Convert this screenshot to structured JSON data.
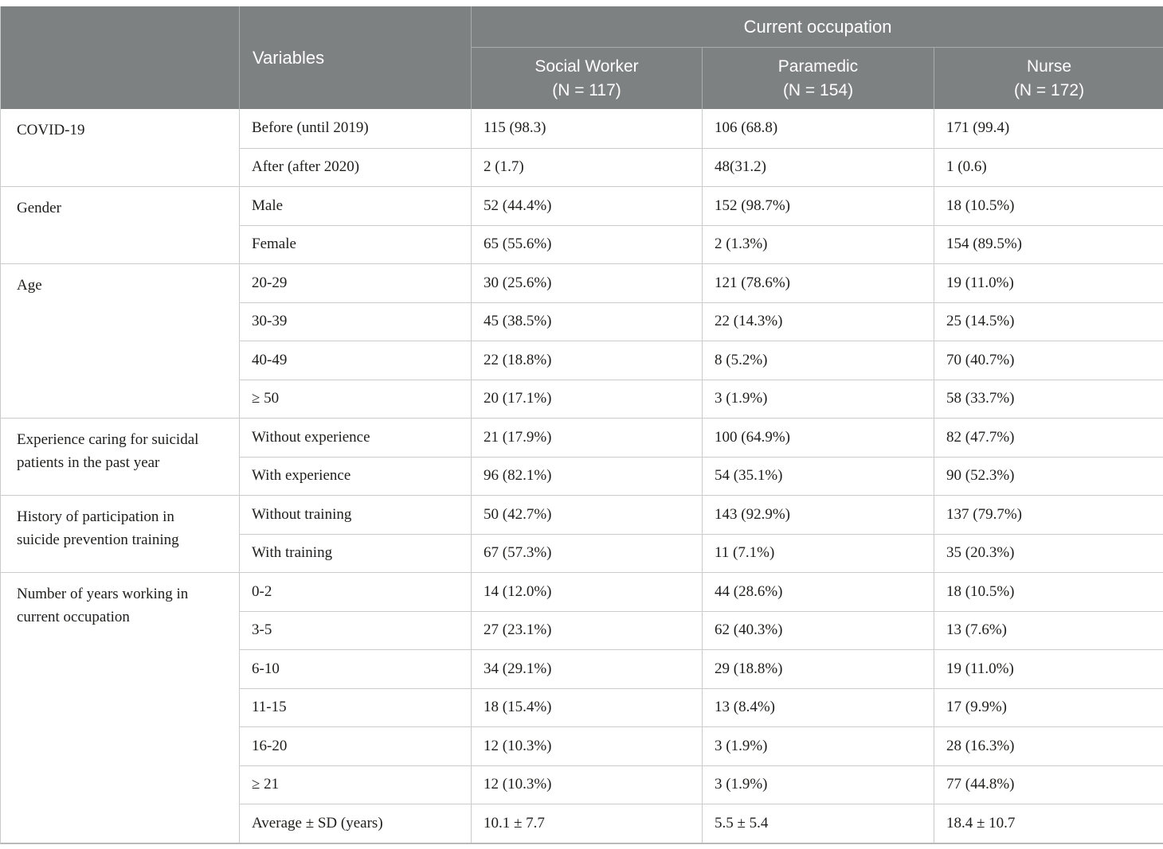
{
  "colors": {
    "header_bg": "#7e8181",
    "header_text": "#ffffff",
    "header_divider": "#a9abac",
    "row_border": "#c9cbcc",
    "table_edge": "#b7b9ba",
    "text": "#1e1e1c",
    "background": "#ffffff"
  },
  "table": {
    "variables_header": "Variables",
    "occupation_header": "Current occupation",
    "columns": [
      {
        "label": "Social Worker",
        "n_label": "(N = 117)"
      },
      {
        "label": "Paramedic",
        "n_label": "(N = 154)"
      },
      {
        "label": "Nurse",
        "n_label": "(N = 172)"
      }
    ],
    "groups": [
      {
        "category": "COVID-19",
        "rows": [
          {
            "variable": "Before (until 2019)",
            "values": [
              "115 (98.3)",
              "106 (68.8)",
              "171 (99.4)"
            ]
          },
          {
            "variable": "After (after 2020)",
            "values": [
              "2 (1.7)",
              "48(31.2)",
              "1 (0.6)"
            ]
          }
        ]
      },
      {
        "category": "Gender",
        "rows": [
          {
            "variable": "Male",
            "values": [
              "52 (44.4%)",
              "152 (98.7%)",
              "18 (10.5%)"
            ]
          },
          {
            "variable": "Female",
            "values": [
              "65 (55.6%)",
              "2 (1.3%)",
              "154 (89.5%)"
            ]
          }
        ]
      },
      {
        "category": "Age",
        "rows": [
          {
            "variable": "20-29",
            "values": [
              "30 (25.6%)",
              "121 (78.6%)",
              "19 (11.0%)"
            ]
          },
          {
            "variable": "30-39",
            "values": [
              "45 (38.5%)",
              "22 (14.3%)",
              "25 (14.5%)"
            ]
          },
          {
            "variable": "40-49",
            "values": [
              "22 (18.8%)",
              "8 (5.2%)",
              "70 (40.7%)"
            ]
          },
          {
            "variable": "≥ 50",
            "values": [
              "20 (17.1%)",
              "3 (1.9%)",
              "58 (33.7%)"
            ]
          }
        ]
      },
      {
        "category": "Experience caring for suicidal patients in the past year",
        "rows": [
          {
            "variable": "Without experience",
            "values": [
              "21 (17.9%)",
              "100 (64.9%)",
              "82 (47.7%)"
            ]
          },
          {
            "variable": "With experience",
            "values": [
              "96 (82.1%)",
              "54 (35.1%)",
              "90 (52.3%)"
            ]
          }
        ]
      },
      {
        "category": "History of participation in suicide prevention training",
        "rows": [
          {
            "variable": "Without training",
            "values": [
              "50 (42.7%)",
              "143 (92.9%)",
              "137 (79.7%)"
            ]
          },
          {
            "variable": "With training",
            "values": [
              "67 (57.3%)",
              "11 (7.1%)",
              "35 (20.3%)"
            ]
          }
        ]
      },
      {
        "category": "Number of years working in current occupation",
        "rows": [
          {
            "variable": "0-2",
            "values": [
              "14 (12.0%)",
              "44 (28.6%)",
              "18 (10.5%)"
            ]
          },
          {
            "variable": "3-5",
            "values": [
              "27 (23.1%)",
              "62 (40.3%)",
              "13 (7.6%)"
            ]
          },
          {
            "variable": "6-10",
            "values": [
              "34 (29.1%)",
              "29 (18.8%)",
              "19 (11.0%)"
            ]
          },
          {
            "variable": "11-15",
            "values": [
              "18 (15.4%)",
              "13 (8.4%)",
              "17 (9.9%)"
            ]
          },
          {
            "variable": "16-20",
            "values": [
              "12 (10.3%)",
              "3 (1.9%)",
              "28 (16.3%)"
            ]
          },
          {
            "variable": "≥ 21",
            "values": [
              "12 (10.3%)",
              "3 (1.9%)",
              "77 (44.8%)"
            ]
          },
          {
            "variable": "Average ± SD (years)",
            "values": [
              "10.1 ± 7.7",
              "5.5 ± 5.4",
              "18.4 ± 10.7"
            ]
          }
        ]
      }
    ]
  }
}
